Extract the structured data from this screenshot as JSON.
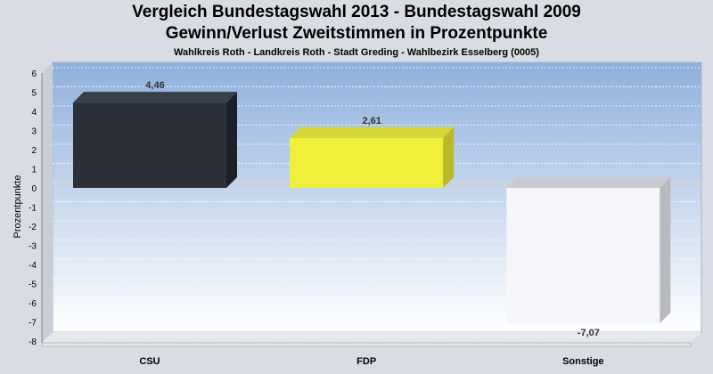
{
  "chart_data": {
    "type": "bar",
    "title": "Vergleich Bundestagswahl 2013  - Bundestagswahl 2009",
    "subtitle": "Gewinn/Verlust Zweitstimmen in Prozentpunkte",
    "subtitle2": "Wahlkreis Roth - Landkreis Roth - Stadt Greding - Wahlbezirk Esselberg (0005)",
    "xlabel": "",
    "ylabel": "Prozentpunkte",
    "categories": [
      "CSU",
      "FDP",
      "Sonstige"
    ],
    "values": [
      4.46,
      2.61,
      -7.07
    ],
    "value_labels": [
      "4,46",
      "2,61",
      "-7,07"
    ],
    "ylim": [
      -8,
      6
    ],
    "yticks": [
      6,
      5,
      4,
      3,
      2,
      1,
      0,
      -1,
      -2,
      -3,
      -4,
      -5,
      -6,
      -7,
      -8
    ],
    "ytick_labels": [
      "6",
      "5",
      "4",
      "3",
      "2",
      "1",
      "0",
      "-1",
      "-2",
      "-3",
      "-4",
      "-5",
      "-6",
      "-7",
      "-8"
    ],
    "grid": true,
    "legend": "none",
    "colors": [
      "#2a2f38",
      "#f0f03a",
      "#f4f6fa"
    ],
    "side_colors": [
      "#1c2028",
      "#b9b92a",
      "#b8bac0"
    ],
    "top_colors": [
      "#3a404a",
      "#d6d636",
      "#c9cbd0"
    ]
  }
}
